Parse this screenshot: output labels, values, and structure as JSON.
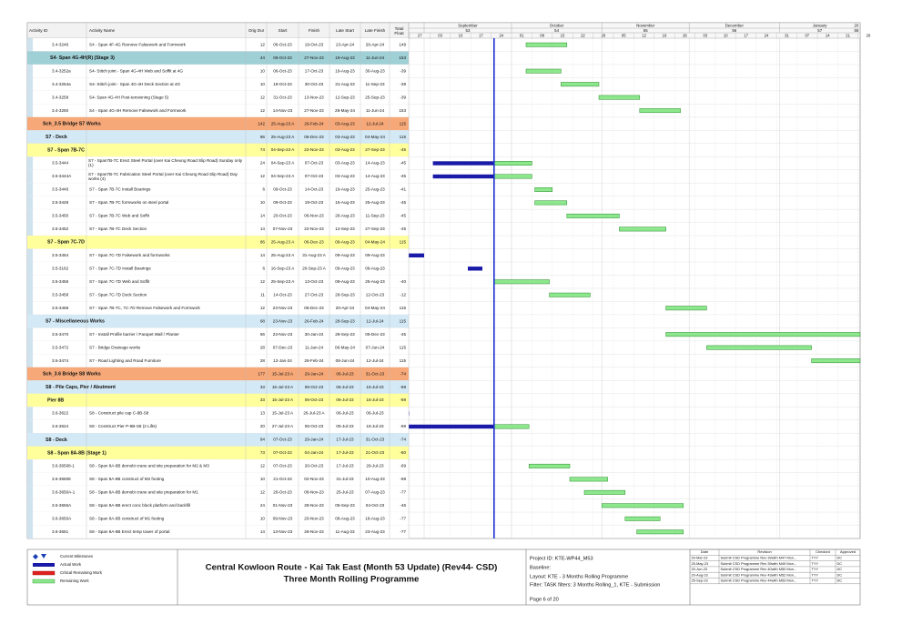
{
  "gantt": {
    "columns": [
      "Activity ID",
      "Activity Name",
      "Orig Dur",
      "Start",
      "Finish",
      "Late Start",
      "Late Finish",
      "Total Float"
    ],
    "timescale": {
      "months": [
        "September",
        "October",
        "November",
        "December",
        "January",
        "20"
      ],
      "periods": [
        "53",
        "54",
        "55",
        "56",
        "57",
        "58"
      ],
      "weeks": [
        "27",
        "03",
        "10",
        "17",
        "24",
        "01",
        "08",
        "15",
        "22",
        "29",
        "05",
        "12",
        "19",
        "26",
        "03",
        "10",
        "17",
        "24",
        "31",
        "07",
        "14",
        "21",
        "28"
      ]
    },
    "rows": [
      {
        "style": "activity",
        "id": "3.4-3246",
        "name": "S4 - Span 4F-4G Remove Falsework and Formwork",
        "dur": "12",
        "start": "06-Oct-23",
        "finish": "19-Oct-23",
        "late_start": "13-Apr-24",
        "late_finish": "26-Apr-24",
        "float": "149"
      },
      {
        "style": "wbs0",
        "name": "S4- Span 4G-4H(R) (Stage 3)",
        "dur": "44",
        "start": "06-Oct-23",
        "finish": "27-Nov-23",
        "late_start": "19-Aug-23",
        "late_finish": "11-Jun-24",
        "float": "153"
      },
      {
        "style": "activity",
        "id": "3.4-3252a",
        "name": "S4- Stitch joint - Span 4G-4H Web and Soffit at 4G",
        "dur": "10",
        "start": "06-Oct-23",
        "finish": "17-Oct-23",
        "late_start": "19-Aug-23",
        "late_finish": "30-Aug-23",
        "float": "-39"
      },
      {
        "style": "activity",
        "id": "3.4-3254a",
        "name": "S4- Stitch joint - Span 4G-4H Deck Section at 4G",
        "dur": "10",
        "start": "18-Oct-23",
        "finish": "30-Oct-23",
        "late_start": "31-Aug-23",
        "late_finish": "11-Sep-23",
        "float": "-39"
      },
      {
        "style": "activity",
        "id": "3.4-3258",
        "name": "S4- Span 4G-4H Post-tensioning (Stage 5)",
        "dur": "12",
        "start": "31-Oct-23",
        "finish": "13-Nov-23",
        "late_start": "12-Sep-23",
        "late_finish": "25-Sep-23",
        "float": "-39"
      },
      {
        "style": "activity",
        "id": "3.4-3260",
        "name": "S4 - Span 4G-4H Remove Falsework and Formwork",
        "dur": "12",
        "start": "14-Nov-23",
        "finish": "27-Nov-23",
        "late_start": "28-May-24",
        "late_finish": "11-Jun-24",
        "float": "153"
      },
      {
        "style": "wbs1",
        "name": "Sch_3.5 Bridge S7 Works",
        "dur": "142",
        "start": "25-Aug-23 A",
        "finish": "26-Feb-24",
        "late_start": "03-Aug-23",
        "late_finish": "12-Jul-24",
        "float": "115"
      },
      {
        "style": "wbs2",
        "name": "S7 - Deck",
        "dur": "86",
        "start": "25-Aug-23 A",
        "finish": "06-Dec-23",
        "late_start": "03-Aug-23",
        "late_finish": "04-May-24",
        "float": "115"
      },
      {
        "style": "wbs3",
        "name": "S7 - Span 7B-7C",
        "dur": "74",
        "start": "04-Sep-23 A",
        "finish": "22-Nov-23",
        "late_start": "03-Aug-23",
        "late_finish": "27-Sep-23",
        "float": "-45"
      },
      {
        "style": "activity",
        "id": "3.5-3444",
        "name": "S7 - Span7B-7C Erect Steel Portal (over Kai Cheung Road Slip Road) Sunday only (1)",
        "dur": "24",
        "start": "04-Sep-23 A",
        "finish": "07-Oct-23",
        "late_start": "03-Aug-23",
        "late_finish": "14-Aug-23",
        "float": "-45"
      },
      {
        "style": "activity",
        "id": "3.5-3444A",
        "name": "S7 - Span7B-7C Fabrication Steel Portal (over Kai Cheung Road Slip Road) Day works (4)",
        "dur": "12",
        "start": "04-Sep-23 A",
        "finish": "07-Oct-23",
        "late_start": "03-Aug-23",
        "late_finish": "14-Aug-23",
        "float": "-45"
      },
      {
        "style": "activity",
        "id": "3.5-3446",
        "name": "S7 - Span 7B-7C Install Bearings",
        "dur": "6",
        "start": "09-Oct-23",
        "finish": "14-Oct-23",
        "late_start": "19-Aug-23",
        "late_finish": "25-Aug-23",
        "float": "-41"
      },
      {
        "style": "activity",
        "id": "3.5-3448",
        "name": "S7 - Span 7B-7C formworks on steel portal",
        "dur": "10",
        "start": "09-Oct-23",
        "finish": "19-Oct-23",
        "late_start": "15-Aug-23",
        "late_finish": "25-Aug-23",
        "float": "-45"
      },
      {
        "style": "activity",
        "id": "3.5-3450",
        "name": "S7 - Span 7B-7C Web and Soffit",
        "dur": "14",
        "start": "20-Oct-23",
        "finish": "06-Nov-23",
        "late_start": "26-Aug-23",
        "late_finish": "11-Sep-23",
        "float": "-45"
      },
      {
        "style": "activity",
        "id": "3.5-3452",
        "name": "S7 - Span 7B-7C Deck Section",
        "dur": "14",
        "start": "07-Nov-23",
        "finish": "22-Nov-23",
        "late_start": "12-Sep-23",
        "late_finish": "27-Sep-23",
        "float": "-45"
      },
      {
        "style": "wbs3",
        "name": "S7 - Span 7C-7D",
        "dur": "86",
        "start": "25-Aug-23 A",
        "finish": "06-Dec-23",
        "late_start": "09-Aug-23",
        "late_finish": "04-May-24",
        "float": "115"
      },
      {
        "style": "activity",
        "id": "3.5-3454",
        "name": "S7 - Span 7C-7D Falsework and formworks",
        "dur": "14",
        "start": "25-Aug-23 A",
        "finish": "31-Aug-23 A",
        "late_start": "09-Aug-23",
        "late_finish": "09-Aug-23"
      },
      {
        "style": "activity",
        "id": "3.5-3162",
        "name": "S7 - Span 7C-7D Install Bearings",
        "dur": "6",
        "start": "16-Sep-23 A",
        "finish": "20-Sep-23 A",
        "late_start": "09-Aug-23",
        "late_finish": "09-Aug-23"
      },
      {
        "style": "activity",
        "id": "3.5-3456",
        "name": "S7 - Span 7C-7D Web and Soffit",
        "dur": "12",
        "start": "25-Sep-23 A",
        "finish": "13-Oct-23",
        "late_start": "09-Aug-23",
        "late_finish": "25-Aug-23",
        "float": "-40"
      },
      {
        "style": "activity",
        "id": "3.5-3458",
        "name": "S7 - Span 7C-7D Deck Section",
        "dur": "11",
        "start": "14-Oct-23",
        "finish": "27-Oct-23",
        "late_start": "28-Sep-23",
        "late_finish": "12-Oct-23",
        "float": "-12"
      },
      {
        "style": "activity",
        "id": "3.5-3468",
        "name": "S7 - Span 7B-7C, 7C-7D Remove Falsework and Formwork",
        "dur": "12",
        "start": "23-Nov-23",
        "finish": "06-Dec-23",
        "late_start": "20-Apr-24",
        "late_finish": "04-May-24",
        "float": "115"
      },
      {
        "style": "wbs2",
        "name": "S7 - Miscellaneous Works",
        "dur": "68",
        "start": "23-Nov-23",
        "finish": "26-Feb-24",
        "late_start": "28-Sep-23",
        "late_finish": "12-Jul-24",
        "float": "115"
      },
      {
        "style": "activity",
        "id": "3.5-3470",
        "name": "S7 - Install Profile barrier / Parapet Wall / Planter",
        "dur": "56",
        "start": "23-Nov-23",
        "finish": "30-Jan-24",
        "late_start": "28-Sep-23",
        "late_finish": "05-Dec-23",
        "float": "-45"
      },
      {
        "style": "activity",
        "id": "3.5-3472",
        "name": "S7 - Bridge Drainage works",
        "dur": "28",
        "start": "07-Dec-23",
        "finish": "11-Jan-24",
        "late_start": "06-May-24",
        "late_finish": "07-Jun-24",
        "float": "115"
      },
      {
        "style": "activity",
        "id": "3.5-3474",
        "name": "S7 - Road Lighting and Road Furniture",
        "dur": "28",
        "start": "12-Jan-24",
        "finish": "26-Feb-24",
        "late_start": "08-Jun-24",
        "late_finish": "12-Jul-24",
        "float": "115"
      },
      {
        "style": "wbs1",
        "name": "Sch_3.6 Bridge S8 Works",
        "dur": "177",
        "start": "15-Jul-23 A",
        "finish": "29-Jan-24",
        "late_start": "06-Jul-23",
        "late_finish": "31-Oct-23",
        "float": "-74"
      },
      {
        "style": "wbs2",
        "name": "S8 - Pile Caps, Pier / Abutment",
        "dur": "33",
        "start": "15-Jul-23 A",
        "finish": "06-Oct-23",
        "late_start": "06-Jul-23",
        "late_finish": "15-Jul-23",
        "float": "-69"
      },
      {
        "style": "wbs3",
        "name": "Pier 8B",
        "dur": "33",
        "start": "15-Jul-23 A",
        "finish": "06-Oct-23",
        "late_start": "06-Jul-23",
        "late_finish": "15-Jul-23",
        "float": "-69"
      },
      {
        "style": "activity",
        "id": "3.6-3622",
        "name": "S8 - Construct pile cap C-8B-S8",
        "dur": "13",
        "start": "15-Jul-23 A",
        "finish": "26-Jul-23 A",
        "late_start": "06-Jul-23",
        "late_finish": "06-Jul-23"
      },
      {
        "style": "activity",
        "id": "3.6-3624",
        "name": "S8 - Construct Pier P-8B-S8 (2 Lifts)",
        "dur": "20",
        "start": "27-Jul-23 A",
        "finish": "06-Oct-23",
        "late_start": "06-Jul-23",
        "late_finish": "15-Jul-23",
        "float": "-69"
      },
      {
        "style": "wbs2",
        "name": "S8 - Deck",
        "dur": "94",
        "start": "07-Oct-23",
        "finish": "29-Jan-24",
        "late_start": "17-Jul-23",
        "late_finish": "31-Oct-23",
        "float": "-74"
      },
      {
        "style": "wbs3",
        "name": "S8 - Span 8A-8B (Stage 1)",
        "dur": "73",
        "start": "07-Oct-23",
        "finish": "04-Jan-24",
        "late_start": "17-Jul-23",
        "late_finish": "21-Oct-23",
        "float": "-60"
      },
      {
        "style": "activity",
        "id": "3.6-36508-1",
        "name": "S8 - Span 8A-8B demobi crane and site preparation for M2 & M3",
        "dur": "12",
        "start": "07-Oct-23",
        "finish": "20-Oct-23",
        "late_start": "17-Jul-23",
        "late_finish": "29-Jul-23",
        "float": "-69"
      },
      {
        "style": "activity",
        "id": "3.6-36508",
        "name": "S8 - Span 8A-8B construct of M2 footing",
        "dur": "10",
        "start": "21-Oct-23",
        "finish": "02-Nov-23",
        "late_start": "31-Jul-23",
        "late_finish": "10-Aug-23",
        "float": "-69"
      },
      {
        "style": "activity",
        "id": "3.6-3650A-1",
        "name": "S8 - Span 8A-8B demobi crane and site preparation for M1",
        "dur": "12",
        "start": "26-Oct-23",
        "finish": "08-Nov-23",
        "late_start": "25-Jul-23",
        "late_finish": "07-Aug-23",
        "float": "-77"
      },
      {
        "style": "activity",
        "id": "3.6-3656A",
        "name": "S8 - Span 8A-8B erect conc block platform and backfill",
        "dur": "24",
        "start": "01-Nov-23",
        "finish": "28-Nov-23",
        "late_start": "05-Sep-23",
        "late_finish": "04-Oct-23",
        "float": "-46"
      },
      {
        "style": "activity",
        "id": "3.6-3650A",
        "name": "S8 - Span 8A-8B construct of M1 footing",
        "dur": "10",
        "start": "09-Nov-23",
        "finish": "20-Nov-23",
        "late_start": "08-Aug-23",
        "late_finish": "18-Aug-23",
        "float": "-77"
      },
      {
        "style": "activity",
        "id": "3.6-3651",
        "name": "S8 - Span 8A-8B Erect temp tower of portal",
        "dur": "14",
        "start": "13-Nov-23",
        "finish": "28-Nov-23",
        "late_start": "11-Aug-23",
        "late_finish": "23-Aug-23",
        "float": "-77"
      }
    ]
  },
  "footer": {
    "legend": [
      "Current Milestones",
      "Actual Work",
      "Critical Remaining Work",
      "Remaining Work"
    ],
    "title": "Central Kowloon Route - Kai Tak East (Month 53 Update) (Rev44- CSD)",
    "subtitle": "Three Month Rolling Programme",
    "project_id": "Project ID: KTE-WP44_M53",
    "baseline": "Baseline:",
    "layout": "Layout: KTE - 3 Months Rolling Programme",
    "filter": "Filter: TASK filters: 3 Months Rolling_1, KTE - Submission",
    "page": "Page 6 of 20",
    "revisions": {
      "headers": [
        "Date",
        "Revision",
        "Checked",
        "Approved"
      ],
      "rows": [
        [
          "20-Mar-23",
          "Submit CSD Programme Rev 39with M47 Mon...",
          "TYY",
          "DC"
        ],
        [
          "25-May-23",
          "Submit CSD Programme Rev 39with M49 Mon...",
          "TYY",
          "DC"
        ],
        [
          "20-Jun-23",
          "Submit CSD Programme Rev 40with M50 Mon...",
          "TYY",
          "DC"
        ],
        [
          "20-Aug-23",
          "Submit CSD Programme Rev 43with M52 Mon...",
          "TYY",
          "DC"
        ],
        [
          "25-Sep-23",
          "Submit CSD Programme Rev 44with M53 Mon...",
          "TYY",
          "DC"
        ]
      ]
    }
  }
}
